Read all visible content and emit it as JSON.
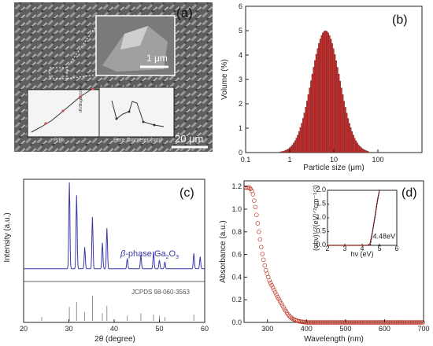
{
  "panels": {
    "a": {
      "letter": "(a)",
      "inset_scale": "1 μm",
      "main_scale": "20 μm",
      "isotherm_xlabel": "P/P₀",
      "pore_xlabel": "Pore Diameter (nm)",
      "pore_ylabel": "dV/dlogD (cm³/g)"
    },
    "b": {
      "letter": "(b)"
    },
    "c": {
      "letter": "(c)",
      "phase_label_prefix": "β",
      "phase_label_text": "-phase Ga",
      "phase_sub1": "2",
      "phase_mid": "O",
      "phase_sub2": "3",
      "ref_label": "JCPDS 98-060-3563"
    },
    "d": {
      "letter": "(d)",
      "inset_annotation": "4.48eV",
      "inset_ylabel": "(αhν)¹ᐟ²(eV¹ᐟ²cm⁻¹ᐟ²)"
    }
  },
  "chart_data": [
    {
      "id": "b",
      "type": "bar",
      "title": "",
      "xlabel": "Particle size (μm)",
      "ylabel": "Volume (%)",
      "xscale": "log",
      "xlim": [
        0.1,
        1000
      ],
      "ylim": [
        0,
        6
      ],
      "xticks": [
        "0.1",
        "1",
        "10",
        "100"
      ],
      "yticks": [
        "0",
        "1",
        "2",
        "3",
        "4",
        "5",
        "6"
      ],
      "distribution": {
        "mode_um": 6.5,
        "peak_volume_pct": 5.0,
        "min_um": 0.6,
        "max_um": 60
      },
      "bar_color": "#d42a2a"
    },
    {
      "id": "c",
      "type": "line",
      "title": "",
      "xlabel": "2θ (degree)",
      "ylabel": "Intensity (a.u.)",
      "xlim": [
        20,
        60
      ],
      "xticks": [
        "20",
        "30",
        "40",
        "50",
        "60"
      ],
      "series_color": "#3a3aa8",
      "peaks": [
        {
          "x": 30.1,
          "h": 1.0
        },
        {
          "x": 31.7,
          "h": 0.85
        },
        {
          "x": 33.5,
          "h": 0.25
        },
        {
          "x": 35.2,
          "h": 0.6
        },
        {
          "x": 37.4,
          "h": 0.3
        },
        {
          "x": 38.4,
          "h": 0.47
        },
        {
          "x": 42.9,
          "h": 0.12
        },
        {
          "x": 45.9,
          "h": 0.16
        },
        {
          "x": 48.7,
          "h": 0.2
        },
        {
          "x": 50.0,
          "h": 0.1
        },
        {
          "x": 51.2,
          "h": 0.08
        },
        {
          "x": 57.6,
          "h": 0.18
        },
        {
          "x": 59.0,
          "h": 0.14
        }
      ],
      "reference_lines": [
        {
          "x": 30.1,
          "h": 0.55
        },
        {
          "x": 31.7,
          "h": 0.75
        },
        {
          "x": 33.5,
          "h": 0.35
        },
        {
          "x": 35.2,
          "h": 1.0
        },
        {
          "x": 37.4,
          "h": 0.3
        },
        {
          "x": 38.4,
          "h": 0.6
        },
        {
          "x": 42.9,
          "h": 0.2
        },
        {
          "x": 45.9,
          "h": 0.3
        },
        {
          "x": 48.7,
          "h": 0.25
        },
        {
          "x": 50.0,
          "h": 0.2
        },
        {
          "x": 51.2,
          "h": 0.15
        },
        {
          "x": 57.6,
          "h": 0.25
        },
        {
          "x": 24.0,
          "h": 0.15
        }
      ]
    },
    {
      "id": "d",
      "type": "scatter",
      "title": "",
      "xlabel": "Wavelength (nm)",
      "ylabel": "Absorbance (a.u.)",
      "xlim": [
        240,
        700
      ],
      "ylim": [
        0,
        1.25
      ],
      "xticks": [
        "300",
        "400",
        "500",
        "600",
        "700"
      ],
      "yticks": [
        "0.0",
        "0.2",
        "0.4",
        "0.6",
        "0.8",
        "1.0",
        "1.2"
      ],
      "marker_color": "#c0392b",
      "curve": [
        [
          245,
          1.19
        ],
        [
          255,
          1.19
        ],
        [
          262,
          1.15
        ],
        [
          270,
          1.0
        ],
        [
          278,
          0.8
        ],
        [
          286,
          0.62
        ],
        [
          295,
          0.47
        ],
        [
          305,
          0.37
        ],
        [
          315,
          0.3
        ],
        [
          325,
          0.23
        ],
        [
          335,
          0.17
        ],
        [
          345,
          0.11
        ],
        [
          355,
          0.06
        ],
        [
          365,
          0.03
        ],
        [
          380,
          0.01
        ],
        [
          400,
          0.0
        ],
        [
          500,
          0.0
        ],
        [
          700,
          0.0
        ]
      ],
      "inset": {
        "xlabel": "hν (eV)",
        "xlim": [
          2,
          6
        ],
        "ylim": [
          0,
          2.0
        ],
        "xticks": [
          "2",
          "3",
          "4",
          "5",
          "6"
        ],
        "yticks": [
          "0.0",
          "0.5",
          "1.0",
          "1.5",
          "2.0"
        ],
        "bandgap_eV": 4.48,
        "curve": [
          [
            2,
            0.0
          ],
          [
            4.3,
            0.0
          ],
          [
            4.45,
            0.05
          ],
          [
            4.6,
            0.5
          ],
          [
            4.75,
            1.1
          ],
          [
            4.9,
            1.7
          ],
          [
            5.0,
            2.0
          ]
        ]
      }
    }
  ]
}
